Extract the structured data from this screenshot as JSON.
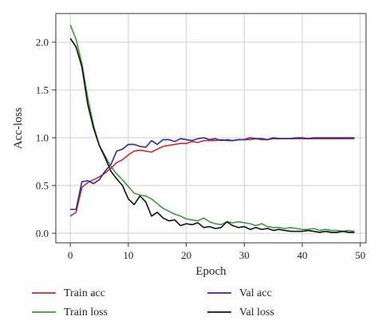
{
  "chart_data": {
    "type": "line",
    "title": "",
    "xlabel": "Epoch",
    "ylabel": "Acc-loss",
    "xlim": [
      -2.5,
      51
    ],
    "ylim": [
      -0.1,
      2.3
    ],
    "xticks": [
      0,
      10,
      20,
      30,
      40,
      50
    ],
    "xtick_labels": [
      "0",
      "10",
      "20",
      "30",
      "40",
      "50"
    ],
    "yticks": [
      0.0,
      0.5,
      1.0,
      1.5,
      2.0
    ],
    "ytick_labels": [
      "0.0",
      "0.5",
      "1.0",
      "1.5",
      "2.0"
    ],
    "grid": true,
    "legend_position": "bottom",
    "x": [
      0,
      1,
      2,
      3,
      4,
      5,
      6,
      7,
      8,
      9,
      10,
      11,
      12,
      13,
      14,
      15,
      16,
      17,
      18,
      19,
      20,
      21,
      22,
      23,
      24,
      25,
      26,
      27,
      28,
      29,
      30,
      31,
      32,
      33,
      34,
      35,
      36,
      37,
      38,
      39,
      40,
      41,
      42,
      43,
      44,
      45,
      46,
      47,
      48,
      49
    ],
    "series": [
      {
        "name": "Train acc",
        "color": "#cc2a2a",
        "values": [
          0.18,
          0.22,
          0.48,
          0.53,
          0.56,
          0.59,
          0.63,
          0.68,
          0.74,
          0.77,
          0.82,
          0.86,
          0.87,
          0.86,
          0.85,
          0.88,
          0.91,
          0.92,
          0.93,
          0.94,
          0.94,
          0.96,
          0.95,
          0.97,
          0.97,
          0.97,
          0.98,
          0.97,
          0.97,
          0.98,
          0.98,
          0.98,
          0.99,
          0.98,
          0.98,
          0.99,
          0.99,
          0.99,
          0.99,
          0.99,
          0.99,
          0.99,
          0.99,
          0.99,
          0.99,
          0.99,
          0.99,
          0.99,
          0.99,
          0.99
        ]
      },
      {
        "name": "Val acc",
        "color": "#2b2b9e",
        "values": [
          0.25,
          0.25,
          0.54,
          0.55,
          0.52,
          0.56,
          0.65,
          0.72,
          0.86,
          0.88,
          0.93,
          0.93,
          0.91,
          0.9,
          0.97,
          0.93,
          0.98,
          0.98,
          0.96,
          0.99,
          0.98,
          0.97,
          0.99,
          1.0,
          0.98,
          0.99,
          0.97,
          0.98,
          0.97,
          0.98,
          0.98,
          1.0,
          0.99,
          0.99,
          0.98,
          1.0,
          0.99,
          0.99,
          0.99,
          1.0,
          1.0,
          0.99,
          1.0,
          1.0,
          1.0,
          1.0,
          1.0,
          1.0,
          1.0,
          1.0
        ]
      },
      {
        "name": "Train loss",
        "color": "#3d9a3d",
        "values": [
          2.18,
          2.03,
          1.78,
          1.42,
          1.13,
          0.92,
          0.81,
          0.7,
          0.62,
          0.56,
          0.49,
          0.42,
          0.4,
          0.39,
          0.36,
          0.31,
          0.26,
          0.23,
          0.2,
          0.18,
          0.15,
          0.14,
          0.13,
          0.16,
          0.12,
          0.1,
          0.09,
          0.12,
          0.11,
          0.12,
          0.11,
          0.1,
          0.08,
          0.1,
          0.07,
          0.06,
          0.06,
          0.05,
          0.06,
          0.05,
          0.04,
          0.04,
          0.05,
          0.03,
          0.04,
          0.03,
          0.03,
          0.02,
          0.03,
          0.02
        ]
      },
      {
        "name": "Val loss",
        "color": "#111111",
        "values": [
          2.04,
          1.95,
          1.74,
          1.35,
          1.1,
          0.92,
          0.79,
          0.65,
          0.57,
          0.5,
          0.36,
          0.3,
          0.39,
          0.33,
          0.18,
          0.22,
          0.16,
          0.13,
          0.14,
          0.08,
          0.1,
          0.09,
          0.11,
          0.06,
          0.07,
          0.05,
          0.06,
          0.12,
          0.08,
          0.06,
          0.07,
          0.04,
          0.06,
          0.04,
          0.05,
          0.03,
          0.04,
          0.03,
          0.02,
          0.02,
          0.02,
          0.03,
          0.02,
          0.01,
          0.02,
          0.01,
          0.01,
          0.02,
          0.01,
          0.01
        ]
      }
    ]
  }
}
